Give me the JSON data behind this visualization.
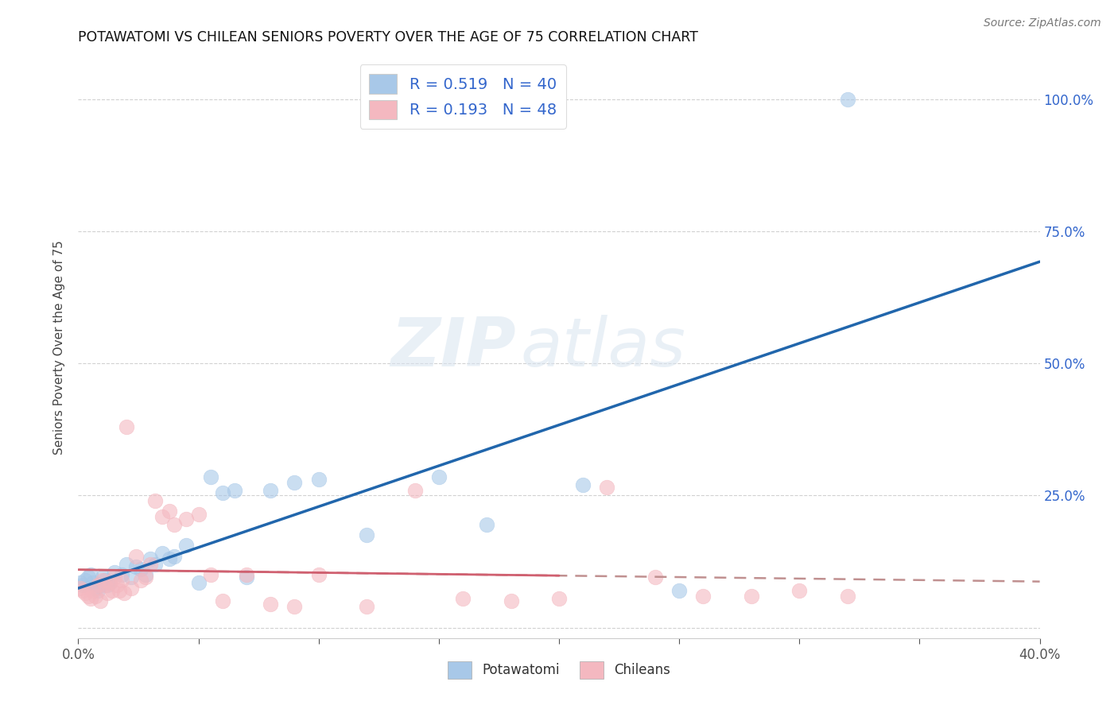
{
  "title": "POTAWATOMI VS CHILEAN SENIORS POVERTY OVER THE AGE OF 75 CORRELATION CHART",
  "source": "Source: ZipAtlas.com",
  "ylabel": "Seniors Poverty Over the Age of 75",
  "xlim": [
    0.0,
    0.4
  ],
  "ylim": [
    -0.02,
    1.08
  ],
  "xticks": [
    0.0,
    0.05,
    0.1,
    0.15,
    0.2,
    0.25,
    0.3,
    0.35,
    0.4
  ],
  "yticks": [
    0.0,
    0.25,
    0.5,
    0.75,
    1.0
  ],
  "potawatomi_R": 0.519,
  "potawatomi_N": 40,
  "chilean_R": 0.193,
  "chilean_N": 48,
  "blue_scatter_color": "#a8c8e8",
  "pink_scatter_color": "#f4b8c0",
  "blue_line_color": "#2166ac",
  "pink_line_color": "#d06070",
  "pink_dash_color": "#c09090",
  "legend_text_color": "#3366cc",
  "background_color": "#ffffff",
  "grid_color": "#cccccc",
  "watermark_zip": "ZIP",
  "watermark_atlas": "atlas",
  "potawatomi_x": [
    0.001,
    0.002,
    0.003,
    0.004,
    0.005,
    0.006,
    0.007,
    0.008,
    0.009,
    0.01,
    0.011,
    0.012,
    0.013,
    0.015,
    0.018,
    0.02,
    0.022,
    0.024,
    0.026,
    0.028,
    0.03,
    0.032,
    0.035,
    0.038,
    0.04,
    0.045,
    0.05,
    0.055,
    0.06,
    0.065,
    0.07,
    0.08,
    0.09,
    0.1,
    0.12,
    0.15,
    0.17,
    0.21,
    0.25,
    0.32
  ],
  "potawatomi_y": [
    0.085,
    0.08,
    0.09,
    0.095,
    0.1,
    0.085,
    0.075,
    0.07,
    0.08,
    0.095,
    0.09,
    0.08,
    0.085,
    0.105,
    0.1,
    0.12,
    0.095,
    0.115,
    0.11,
    0.1,
    0.13,
    0.12,
    0.14,
    0.13,
    0.135,
    0.155,
    0.085,
    0.285,
    0.255,
    0.26,
    0.095,
    0.26,
    0.275,
    0.28,
    0.175,
    0.285,
    0.195,
    0.27,
    0.07,
    1.0
  ],
  "chilean_x": [
    0.001,
    0.002,
    0.003,
    0.004,
    0.005,
    0.006,
    0.007,
    0.008,
    0.009,
    0.01,
    0.011,
    0.012,
    0.013,
    0.014,
    0.015,
    0.016,
    0.017,
    0.018,
    0.019,
    0.02,
    0.022,
    0.024,
    0.026,
    0.028,
    0.03,
    0.032,
    0.035,
    0.038,
    0.04,
    0.045,
    0.05,
    0.055,
    0.06,
    0.07,
    0.08,
    0.09,
    0.1,
    0.12,
    0.14,
    0.16,
    0.18,
    0.2,
    0.22,
    0.24,
    0.26,
    0.28,
    0.3,
    0.32
  ],
  "chilean_y": [
    0.075,
    0.07,
    0.065,
    0.06,
    0.055,
    0.07,
    0.06,
    0.08,
    0.05,
    0.09,
    0.08,
    0.065,
    0.085,
    0.07,
    0.095,
    0.08,
    0.07,
    0.09,
    0.065,
    0.38,
    0.075,
    0.135,
    0.09,
    0.095,
    0.12,
    0.24,
    0.21,
    0.22,
    0.195,
    0.205,
    0.215,
    0.1,
    0.05,
    0.1,
    0.045,
    0.04,
    0.1,
    0.04,
    0.26,
    0.055,
    0.05,
    0.055,
    0.265,
    0.095,
    0.06,
    0.06,
    0.07,
    0.06
  ]
}
